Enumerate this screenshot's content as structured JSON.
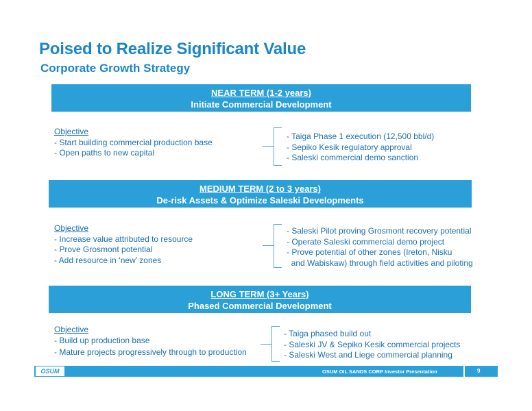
{
  "title": "Poised to Realize Significant Value",
  "subtitle": "Corporate Growth Strategy",
  "sections": [
    {
      "term": "NEAR TERM (1-2 years)",
      "desc": "Initiate Commercial Development",
      "objective_label": "Objective",
      "objectives": [
        "- Start building commercial production base",
        "- Open paths to new capital"
      ],
      "actions": [
        "- Taiga Phase 1 execution (12,500 bbl/d)",
        "- Sepiko Kesik regulatory approval",
        "- Saleski commercial demo sanction"
      ]
    },
    {
      "term": "MEDIUM TERM (2 to 3 years)",
      "desc": "De-risk Assets & Optimize Saleski Developments",
      "objective_label": "Objective",
      "objectives": [
        "- Increase value attributed to resource",
        "- Prove Grosmont potential",
        "- Add resource in ‘new’ zones"
      ],
      "actions": [
        "- Saleski Pilot proving Grosmont recovery potential",
        "- Operate Saleski commercial demo project",
        "- Prove potential of other zones (Ireton, Nisku",
        "  and Wabiskaw) through field activities and piloting"
      ]
    },
    {
      "term": "LONG TERM (3+ Years)",
      "desc": "Phased Commercial Development",
      "objective_label": "Objective",
      "objectives": [
        "- Build up production base",
        "- Mature projects progressively through to production"
      ],
      "actions": [
        "- Taiga phased build out",
        "- Saleski JV & Sepiko Kesik commercial projects",
        "- Saleski West and Liege commercial planning"
      ]
    }
  ],
  "footer": {
    "logo": "OSUM",
    "text": "OSUM OIL SANDS CORP Investor Presentation",
    "page": "9"
  }
}
